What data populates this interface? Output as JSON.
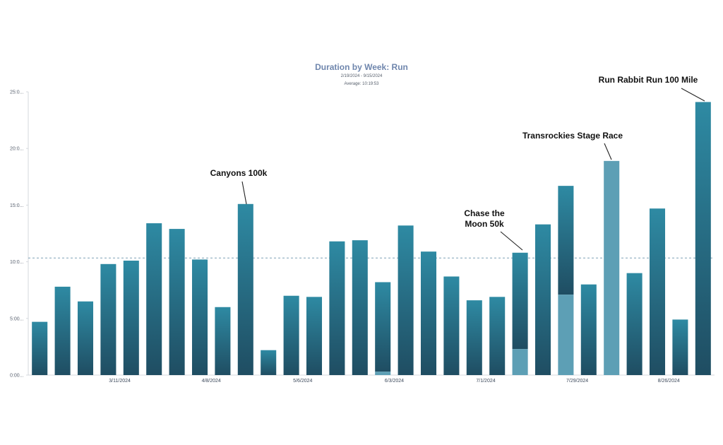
{
  "chart_data": {
    "type": "bar",
    "title": "Duration by Week: Run",
    "date_range": "2/19/2024 - 9/15/2024",
    "average_label": "Average: 10:19:53",
    "average_value": 10.33,
    "y_ticks": [
      "0:00...",
      "5:00...",
      "10:0...",
      "15:0...",
      "20:0...",
      "25:0..."
    ],
    "ylim": [
      0,
      25
    ],
    "x_tick_labels": [
      {
        "index": 3,
        "label": "3/11/2024"
      },
      {
        "index": 7,
        "label": "4/8/2024"
      },
      {
        "index": 11,
        "label": "5/6/2024"
      },
      {
        "index": 15,
        "label": "6/3/2024"
      },
      {
        "index": 19,
        "label": "7/1/2024"
      },
      {
        "index": 23,
        "label": "7/29/2024"
      },
      {
        "index": 27,
        "label": "8/26/2024"
      }
    ],
    "series": [
      {
        "values": [
          4.7,
          7.8,
          6.5,
          9.8,
          10.1,
          13.4,
          12.9,
          10.2,
          6.0,
          15.1,
          2.2,
          7.0,
          6.9,
          11.8,
          11.9,
          7.9,
          13.2,
          10.9,
          8.7,
          6.6,
          6.9,
          8.5,
          13.3,
          9.6,
          8.0,
          0.0,
          9.0,
          14.7,
          4.9,
          24.1
        ]
      },
      {
        "values": [
          0,
          0,
          0,
          0,
          0,
          0,
          0,
          0,
          0,
          0,
          0,
          0,
          0,
          0,
          0,
          0.3,
          0,
          0,
          0,
          0,
          0,
          2.3,
          0,
          7.1,
          0,
          18.9,
          0,
          0,
          0,
          0
        ]
      }
    ],
    "colors": {
      "primary_top": "#2e8aa3",
      "primary_bottom": "#1f4d62",
      "secondary": "#5d9fb5",
      "average_line": "#7fa1b5"
    },
    "annotations": [
      {
        "text": "Canyons 100k",
        "bar_index": 9
      },
      {
        "text": "Chase the Moon 50k",
        "bar_index": 21
      },
      {
        "text": "Transrockies Stage Race",
        "bar_index": 25
      },
      {
        "text": "Run Rabbit Run 100 Mile",
        "bar_index": 29
      }
    ]
  }
}
